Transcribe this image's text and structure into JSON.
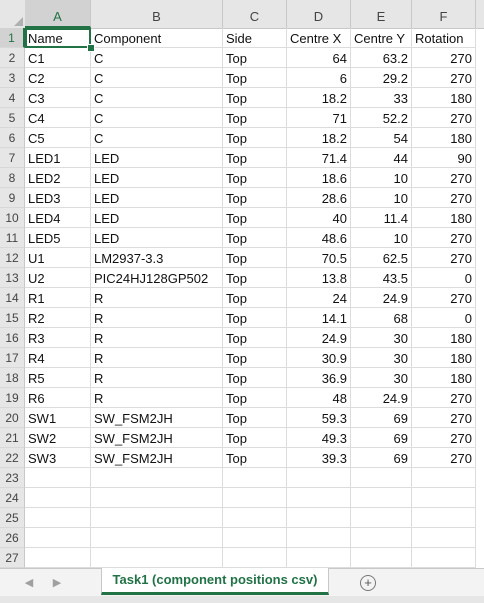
{
  "columns": {
    "A": "A",
    "B": "B",
    "C": "C",
    "D": "D",
    "E": "E",
    "F": "F"
  },
  "rows": [
    {
      "n": "1",
      "a": "Name",
      "b": "Component",
      "c": "Side",
      "d": "Centre X",
      "e": "Centre Y",
      "f": "Rotation"
    },
    {
      "n": "2",
      "a": "C1",
      "b": "C",
      "c": "Top",
      "d": "64",
      "e": "63.2",
      "f": "270"
    },
    {
      "n": "3",
      "a": "C2",
      "b": "C",
      "c": "Top",
      "d": "6",
      "e": "29.2",
      "f": "270"
    },
    {
      "n": "4",
      "a": "C3",
      "b": "C",
      "c": "Top",
      "d": "18.2",
      "e": "33",
      "f": "180"
    },
    {
      "n": "5",
      "a": "C4",
      "b": "C",
      "c": "Top",
      "d": "71",
      "e": "52.2",
      "f": "270"
    },
    {
      "n": "6",
      "a": "C5",
      "b": "C",
      "c": "Top",
      "d": "18.2",
      "e": "54",
      "f": "180"
    },
    {
      "n": "7",
      "a": "LED1",
      "b": "LED",
      "c": "Top",
      "d": "71.4",
      "e": "44",
      "f": "90"
    },
    {
      "n": "8",
      "a": "LED2",
      "b": "LED",
      "c": "Top",
      "d": "18.6",
      "e": "10",
      "f": "270"
    },
    {
      "n": "9",
      "a": "LED3",
      "b": "LED",
      "c": "Top",
      "d": "28.6",
      "e": "10",
      "f": "270"
    },
    {
      "n": "10",
      "a": "LED4",
      "b": "LED",
      "c": "Top",
      "d": "40",
      "e": "11.4",
      "f": "180"
    },
    {
      "n": "11",
      "a": "LED5",
      "b": "LED",
      "c": "Top",
      "d": "48.6",
      "e": "10",
      "f": "270"
    },
    {
      "n": "12",
      "a": "U1",
      "b": "LM2937-3.3",
      "c": "Top",
      "d": "70.5",
      "e": "62.5",
      "f": "270"
    },
    {
      "n": "13",
      "a": "U2",
      "b": "PIC24HJ128GP502",
      "c": "Top",
      "d": "13.8",
      "e": "43.5",
      "f": "0"
    },
    {
      "n": "14",
      "a": "R1",
      "b": "R",
      "c": "Top",
      "d": "24",
      "e": "24.9",
      "f": "270"
    },
    {
      "n": "15",
      "a": "R2",
      "b": "R",
      "c": "Top",
      "d": "14.1",
      "e": "68",
      "f": "0"
    },
    {
      "n": "16",
      "a": "R3",
      "b": "R",
      "c": "Top",
      "d": "24.9",
      "e": "30",
      "f": "180"
    },
    {
      "n": "17",
      "a": "R4",
      "b": "R",
      "c": "Top",
      "d": "30.9",
      "e": "30",
      "f": "180"
    },
    {
      "n": "18",
      "a": "R5",
      "b": "R",
      "c": "Top",
      "d": "36.9",
      "e": "30",
      "f": "180"
    },
    {
      "n": "19",
      "a": "R6",
      "b": "R",
      "c": "Top",
      "d": "48",
      "e": "24.9",
      "f": "270"
    },
    {
      "n": "20",
      "a": "SW1",
      "b": "SW_FSM2JH",
      "c": "Top",
      "d": "59.3",
      "e": "69",
      "f": "270"
    },
    {
      "n": "21",
      "a": "SW2",
      "b": "SW_FSM2JH",
      "c": "Top",
      "d": "49.3",
      "e": "69",
      "f": "270"
    },
    {
      "n": "22",
      "a": "SW3",
      "b": "SW_FSM2JH",
      "c": "Top",
      "d": "39.3",
      "e": "69",
      "f": "270"
    },
    {
      "n": "23",
      "a": "",
      "b": "",
      "c": "",
      "d": "",
      "e": "",
      "f": ""
    },
    {
      "n": "24",
      "a": "",
      "b": "",
      "c": "",
      "d": "",
      "e": "",
      "f": ""
    },
    {
      "n": "25",
      "a": "",
      "b": "",
      "c": "",
      "d": "",
      "e": "",
      "f": ""
    },
    {
      "n": "26",
      "a": "",
      "b": "",
      "c": "",
      "d": "",
      "e": "",
      "f": ""
    },
    {
      "n": "27",
      "a": "",
      "b": "",
      "c": "",
      "d": "",
      "e": "",
      "f": ""
    }
  ],
  "footer": {
    "prev_arrow_icon": "chevron-left-icon",
    "next_arrow_icon": "chevron-right-icon",
    "sheet_tab": "Task1 (component positions csv)",
    "add_sheet_icon": "plus-circle-icon"
  },
  "colors": {
    "accent": "#217346",
    "header_bg": "#e6e6e6"
  }
}
